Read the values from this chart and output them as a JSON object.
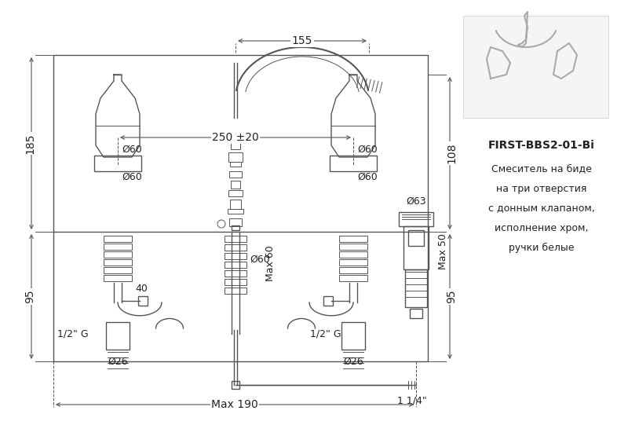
{
  "bg_color": "#ffffff",
  "lc": "#555555",
  "tc": "#222222",
  "fig_w": 8.0,
  "fig_h": 5.69,
  "product_code": "FIRST-BBS2-01-Bi",
  "product_desc_lines": [
    "Смеситель на биде",
    "на три отверстия",
    "с донным клапаном,",
    "исполнение хром,",
    "ручки белые"
  ]
}
